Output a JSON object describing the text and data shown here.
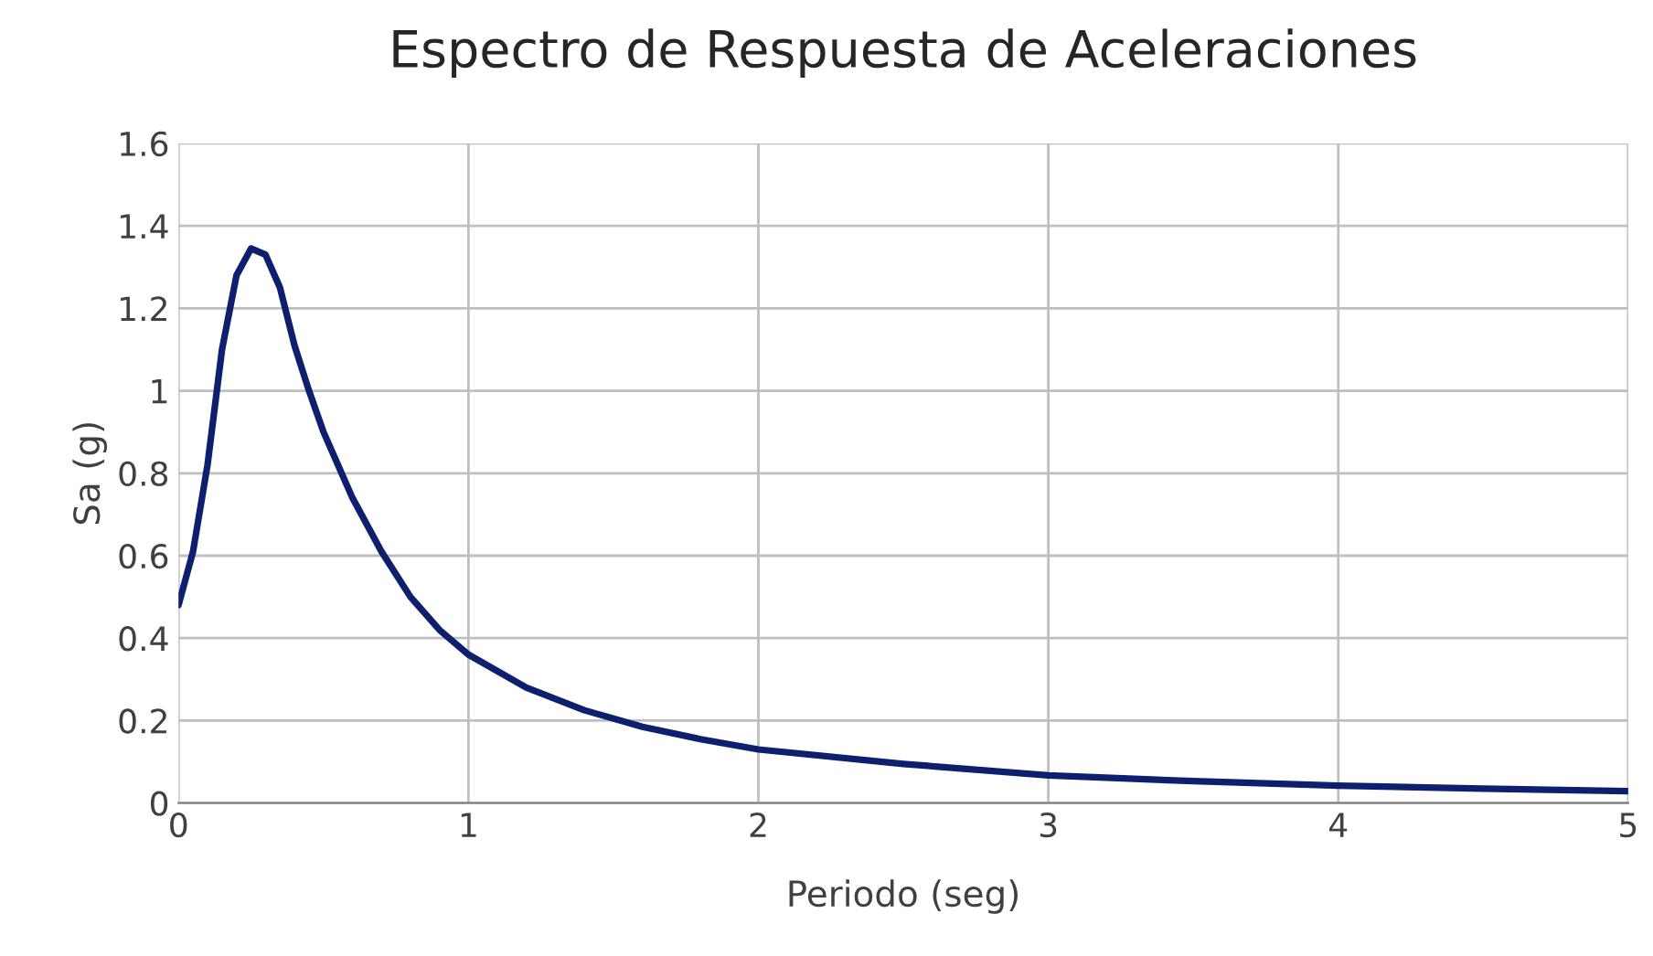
{
  "chart_data": {
    "type": "line",
    "title": "Espectro de Respuesta de Aceleraciones",
    "xlabel": "Periodo (seg)",
    "ylabel": "Sa (g)",
    "x": [
      0,
      0.05,
      0.1,
      0.15,
      0.2,
      0.25,
      0.3,
      0.35,
      0.4,
      0.45,
      0.5,
      0.6,
      0.7,
      0.8,
      0.9,
      1.0,
      1.2,
      1.4,
      1.6,
      1.8,
      2.0,
      2.5,
      3.0,
      3.5,
      4.0,
      4.5,
      5.0
    ],
    "series": [
      {
        "color": "#0d1f6e",
        "values": [
          0.48,
          0.61,
          0.82,
          1.1,
          1.28,
          1.345,
          1.33,
          1.25,
          1.11,
          1.0,
          0.9,
          0.74,
          0.61,
          0.5,
          0.42,
          0.36,
          0.28,
          0.225,
          0.185,
          0.155,
          0.13,
          0.095,
          0.067,
          0.053,
          0.042,
          0.035,
          0.029
        ]
      }
    ],
    "xlim": [
      0,
      5
    ],
    "ylim": [
      0,
      1.6
    ],
    "xticks": [
      0,
      1,
      2,
      3,
      4,
      5
    ],
    "yticks": [
      0,
      0.2,
      0.4,
      0.6,
      0.8,
      1,
      1.2,
      1.4,
      1.6
    ],
    "grid": true,
    "marker": "none",
    "line_style": "solid"
  }
}
